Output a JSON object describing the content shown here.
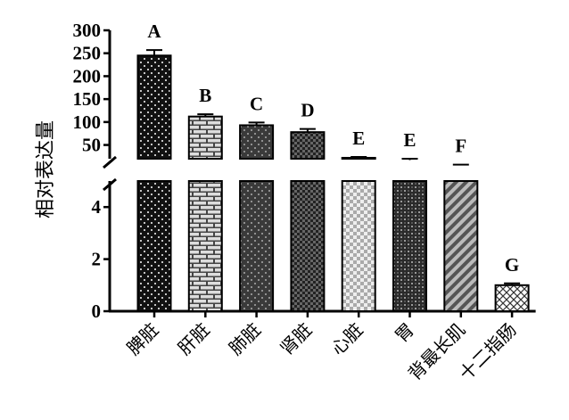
{
  "chart_data": {
    "type": "bar",
    "ylabel": "相对表达量",
    "categories": [
      "脾脏",
      "肝脏",
      "肺脏",
      "肾脏",
      "心脏",
      "胃",
      "背最长肌",
      "十二指肠"
    ],
    "values": [
      245,
      112,
      93,
      78,
      22,
      17,
      6,
      1
    ],
    "errors": [
      12,
      5,
      6,
      7,
      2,
      3,
      1,
      0.07
    ],
    "significance_letters": [
      "A",
      "B",
      "C",
      "D",
      "E",
      "E",
      "F",
      "G"
    ],
    "axis_break": true,
    "y_upper_segment": {
      "range": [
        20,
        300
      ],
      "ticks": [
        50,
        100,
        150,
        200,
        250,
        300
      ]
    },
    "y_lower_segment": {
      "range": [
        0,
        5
      ],
      "ticks": [
        0,
        2,
        4
      ]
    },
    "grid": false,
    "legend": "none",
    "bar_patterns": [
      "dots",
      "bricks",
      "dots-dark",
      "checker",
      "checker-light",
      "weave",
      "diagonal-stripes",
      "cross-hatch"
    ]
  }
}
